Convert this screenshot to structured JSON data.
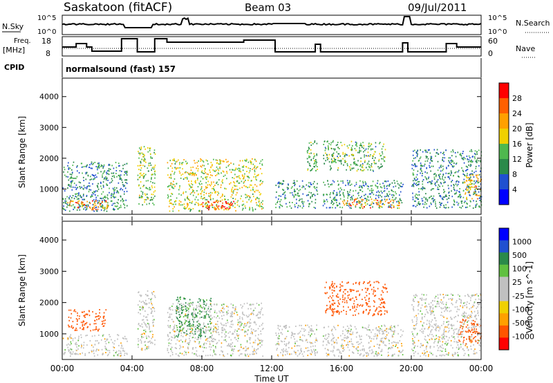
{
  "header": {
    "station": "Saskatoon (fitACF)",
    "beam": "Beam 03",
    "date": "09/Jul/2011"
  },
  "labels": {
    "nsky": "N.Sky",
    "nsearch": "N.Search",
    "freq_line1": "Freq.",
    "freq_line2": "[MHz]",
    "nave": "Nave",
    "cpid": "CPID",
    "cpid_value": "normalsound (fast) 157",
    "noise_tick_hi_left": "10^5",
    "noise_tick_lo_left": "10^0",
    "noise_tick_hi_right": "10^5",
    "noise_tick_lo_right": "10^0",
    "freq_tick_hi": "18",
    "freq_tick_lo": "8",
    "nave_tick_hi": "60",
    "nave_tick_lo": "0"
  },
  "colors": {
    "power": [
      "#0000ff",
      "#2050d0",
      "#2a8a4a",
      "#4fb84f",
      "#f0d000",
      "#ffa000",
      "#ff6000",
      "#ff0000"
    ],
    "velocity": [
      "#ff0000",
      "#ff5500",
      "#ffa000",
      "#f0d000",
      "#c0c0c0",
      "#c0c0c0",
      "#60c040",
      "#2a8a4a",
      "#2050d0",
      "#0000ff"
    ]
  },
  "chart_data": [
    {
      "type": "heatmap",
      "title": "",
      "ylabel": "Slant Range [km]",
      "xlabel": "",
      "ylim": [
        180,
        4600
      ],
      "yticks": [
        "1000",
        "2000",
        "3000",
        "4000"
      ],
      "colorbar": {
        "label": "Power [dB]",
        "ticks": [
          "4",
          "8",
          "12",
          "16",
          "20",
          "24",
          "28"
        ],
        "range": [
          0,
          30
        ]
      },
      "scatter_regions": [
        {
          "t0": 0.0,
          "t1": 3.7,
          "r0": 300,
          "r1": 1900,
          "value": 9
        },
        {
          "t0": 0.2,
          "t1": 2.6,
          "r0": 350,
          "r1": 650,
          "value": 22
        },
        {
          "t0": 4.3,
          "t1": 5.3,
          "r0": 500,
          "r1": 2400,
          "value": 14
        },
        {
          "t0": 6.0,
          "t1": 11.5,
          "r0": 300,
          "r1": 2000,
          "value": 16
        },
        {
          "t0": 8.0,
          "t1": 9.8,
          "r0": 350,
          "r1": 650,
          "value": 26
        },
        {
          "t0": 12.2,
          "t1": 19.5,
          "r0": 400,
          "r1": 1300,
          "value": 10
        },
        {
          "t0": 16.0,
          "t1": 19.3,
          "r0": 400,
          "r1": 700,
          "value": 22
        },
        {
          "t0": 14.0,
          "t1": 18.5,
          "r0": 1600,
          "r1": 2600,
          "value": 12
        },
        {
          "t0": 20.0,
          "t1": 24.0,
          "r0": 400,
          "r1": 2300,
          "value": 9
        },
        {
          "t0": 23.0,
          "t1": 24.0,
          "r0": 700,
          "r1": 1500,
          "value": 20
        }
      ]
    },
    {
      "type": "heatmap",
      "title": "",
      "ylabel": "Slant Range [km]",
      "xlabel": "Time UT",
      "ylim": [
        180,
        4600
      ],
      "yticks": [
        "1000",
        "2000",
        "3000",
        "4000"
      ],
      "xticks": [
        "00:00",
        "04:00",
        "08:00",
        "12:00",
        "16:00",
        "20:00",
        "00:00"
      ],
      "colorbar": {
        "label": "Velocity [m s^-1]",
        "ticks": [
          "1000",
          "500",
          "100",
          "25",
          "-25",
          "-100",
          "-500",
          "-1000"
        ]
      },
      "scatter_regions": [
        {
          "t0": 0.0,
          "t1": 3.7,
          "r0": 300,
          "r1": 1000,
          "value": 0
        },
        {
          "t0": 0.3,
          "t1": 2.5,
          "r0": 1100,
          "r1": 1800,
          "value": -300
        },
        {
          "t0": 4.3,
          "t1": 5.3,
          "r0": 500,
          "r1": 2400,
          "value": 0
        },
        {
          "t0": 6.0,
          "t1": 11.5,
          "r0": 300,
          "r1": 2000,
          "value": 0
        },
        {
          "t0": 6.5,
          "t1": 8.5,
          "r0": 900,
          "r1": 2200,
          "value": 150
        },
        {
          "t0": 12.2,
          "t1": 19.5,
          "r0": 300,
          "r1": 1300,
          "value": 0
        },
        {
          "t0": 15.0,
          "t1": 18.6,
          "r0": 1600,
          "r1": 2700,
          "value": -300
        },
        {
          "t0": 20.0,
          "t1": 24.0,
          "r0": 300,
          "r1": 2300,
          "value": 0
        },
        {
          "t0": 22.7,
          "t1": 24.0,
          "r0": 700,
          "r1": 1500,
          "value": -300
        }
      ]
    }
  ],
  "gaps_hours": [
    [
      3.7,
      4.3
    ],
    [
      5.3,
      6.0
    ],
    [
      11.5,
      12.2
    ],
    [
      14.6,
      14.9
    ],
    [
      19.5,
      20.0
    ]
  ]
}
